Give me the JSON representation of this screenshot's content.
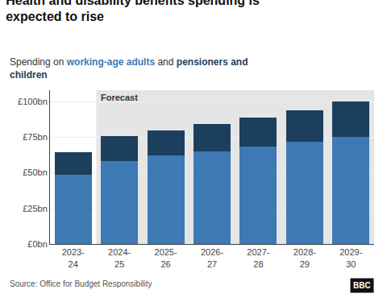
{
  "chart_data": {
    "type": "bar",
    "stacked": true,
    "title": "Health and disability benefits spending is\nexpected to rise",
    "subtitle": [
      {
        "text": "Spending on "
      },
      {
        "text": "working-age adults",
        "color": "#3d7ab5"
      },
      {
        "text": " and "
      },
      {
        "text": "pensioners and\nchildren",
        "color": "#1c3f5e"
      }
    ],
    "categories": [
      "2023-\n24",
      "2024-\n25",
      "2025-\n26",
      "2026-\n27",
      "2027-\n28",
      "2028-\n29",
      "2029-\n30"
    ],
    "series": [
      {
        "color": "#3d7ab5",
        "values": [
          48.5,
          58.0,
          62.0,
          65.0,
          68.5,
          72.0,
          75.0
        ]
      },
      {
        "color": "#1c3f5e",
        "values": [
          16.2,
          17.5,
          18.0,
          19.0,
          20.5,
          22.0,
          25.0
        ]
      }
    ],
    "ylim": [
      0,
      108
    ],
    "yticks": [
      {
        "value": 0,
        "label": "£0bn"
      },
      {
        "value": 25,
        "label": "£25bn"
      },
      {
        "value": 50,
        "label": "£50bn"
      },
      {
        "value": 75,
        "label": "£75bn"
      },
      {
        "value": 100,
        "label": "£100bn"
      }
    ],
    "grid": true,
    "forecast": {
      "label": "Forecast",
      "start": "2024-\n25",
      "color": "#e5e5e5"
    },
    "source": "Source: Office for Budget Responsibility",
    "logo": "BBC"
  }
}
